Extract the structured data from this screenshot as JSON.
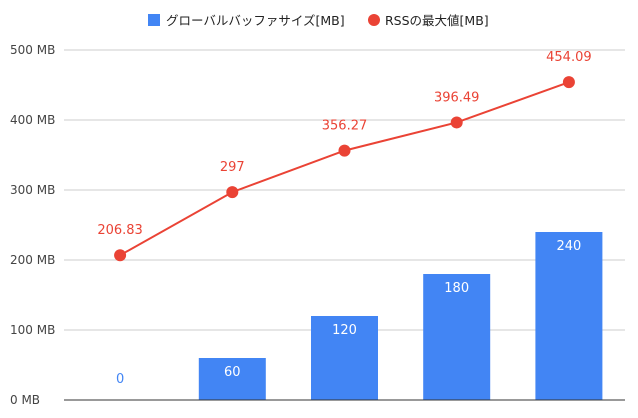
{
  "colors": {
    "bar": "#4285f4",
    "line": "#ea4335",
    "grid": "#cccccc",
    "axis": "#333333"
  },
  "legend": [
    {
      "label": "グローバルバッファサイズ[MB]",
      "shape": "square",
      "color": "#4285f4"
    },
    {
      "label": "RSSの最大値[MB]",
      "shape": "circle",
      "color": "#ea4335"
    }
  ],
  "chart_data": {
    "type": "bar",
    "title": "",
    "xlabel": "",
    "ylabel": "",
    "ylim": [
      0,
      500
    ],
    "yticks": [
      0,
      100,
      200,
      300,
      400,
      500
    ],
    "ytick_labels": [
      "0 MB",
      "100 MB",
      "200 MB",
      "300 MB",
      "400 MB",
      "500 MB"
    ],
    "grid": true,
    "legend_position": "top",
    "categories": [
      "",
      "",
      "",
      "",
      ""
    ],
    "series": [
      {
        "name": "グローバルバッファサイズ[MB]",
        "type": "bar",
        "color": "#4285f4",
        "values": [
          0,
          60,
          120,
          180,
          240
        ],
        "labels": [
          "0",
          "60",
          "120",
          "180",
          "240"
        ]
      },
      {
        "name": "RSSの最大値[MB]",
        "type": "line",
        "color": "#ea4335",
        "values": [
          206.83,
          297,
          356.27,
          396.49,
          454.09
        ],
        "labels": [
          "206.83",
          "297",
          "356.27",
          "396.49",
          "454.09"
        ]
      }
    ]
  }
}
